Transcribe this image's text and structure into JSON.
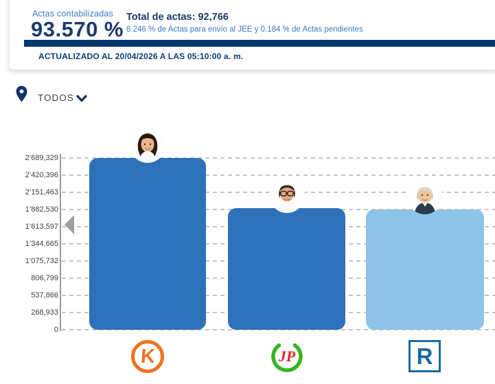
{
  "header": {
    "actas_label": "Actas contabilizadas",
    "actas_pct": "93.570 %",
    "total_label": "Total de actas: 92,766",
    "subtitle": "6.246 % de Actas para envío al JEE y 0.184 % de Actas pendientes",
    "updated": "ACTUALIZADO AL 20/04/2026 A LAS 05:10:00 a. m."
  },
  "filter": {
    "label": "TODOS",
    "pin_icon": "location-pin",
    "chevron_icon": "chevron-down"
  },
  "colors": {
    "navy": "#05386f",
    "navy_text": "#1c3a6e",
    "accent_blue": "#3b79c3",
    "bar_blue": "#2e71b8",
    "bar_light_blue": "#8ec4e8",
    "grid_gray": "#c4c4c4",
    "arrow_gray": "#9e9e9e",
    "logo_orange": "#ee7220",
    "logo_green": "#37b520",
    "logo_red": "#e3232b",
    "logo_blue": "#1b6aa4"
  },
  "chart_data": {
    "type": "bar",
    "title": "",
    "xlabel": "",
    "ylabel": "",
    "categories": [
      "K",
      "JP",
      "R"
    ],
    "values": [
      2689329,
      1900000,
      1880000
    ],
    "ylim": [
      0,
      2689329
    ],
    "grid": "horizontal-dashed",
    "legend": "none",
    "y_ticks": [
      "2’689,329",
      "2’420,396",
      "2’151,463",
      "1’882,530",
      "1’613,597",
      "1’344,665",
      "1’075,732",
      "806,799",
      "537,866",
      "268,933",
      "0"
    ],
    "bar_colors": [
      "#2e71b8",
      "#2e71b8",
      "#8ec4e8"
    ],
    "candidates": [
      {
        "party_logo": "K",
        "avatar": "woman-dark-hair"
      },
      {
        "party_logo": "JP",
        "avatar": "man-glasses"
      },
      {
        "party_logo": "R",
        "avatar": "man-gray-hair"
      }
    ],
    "carousel": {
      "prev_arrow": true
    }
  }
}
